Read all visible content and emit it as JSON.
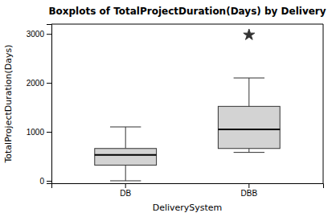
{
  "chart_data": {
    "type": "box",
    "title": "Boxplots of TotalProjectDuration(Days) by Delivery",
    "xlabel": "DeliverySystem",
    "ylabel": "TotalProjectDuration(Days)",
    "categories": [
      "DB",
      "DBB"
    ],
    "boxes": [
      {
        "whislo": 0,
        "q1": 320,
        "med": 530,
        "q3": 660,
        "whishi": 1100,
        "fliers": []
      },
      {
        "whislo": 580,
        "q1": 660,
        "med": 1050,
        "q3": 1520,
        "whishi": 2100,
        "fliers": [
          2980
        ]
      }
    ],
    "ylim": [
      -50,
      3200
    ],
    "yticks": [
      0,
      1000,
      2000,
      3000
    ],
    "color": "#d3d3d3",
    "marker": "star",
    "grid": false
  }
}
